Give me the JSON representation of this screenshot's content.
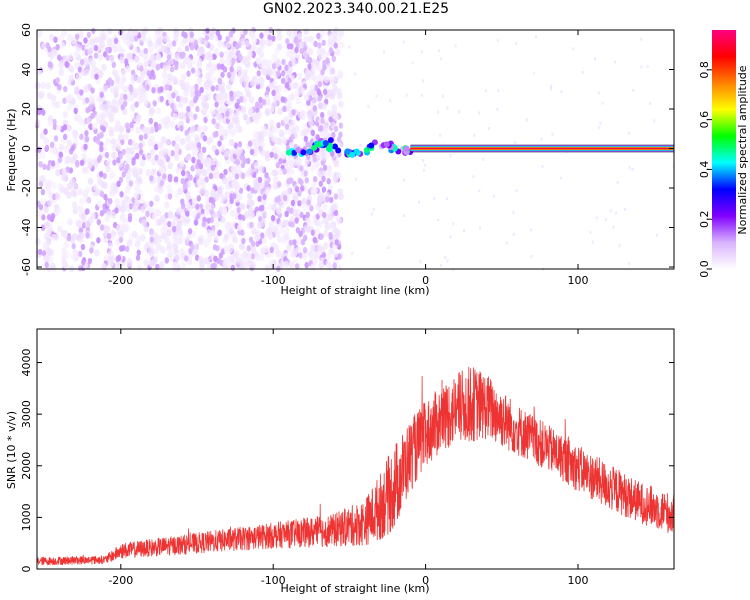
{
  "title": "GN02.2023.340.00.21.E25",
  "chart_data": [
    {
      "type": "heatmap",
      "xlabel": "Height of straight line (km)",
      "ylabel": "Frequency (Hz)",
      "xlim": [
        -255,
        163
      ],
      "ylim": [
        -61,
        60
      ],
      "x_ticks": [
        -200,
        -100,
        0,
        100
      ],
      "y_ticks": [
        -60,
        -40,
        -20,
        0,
        20,
        40,
        60
      ],
      "colorbar": {
        "label": "Normalized spectral amplitude",
        "range": [
          0.0,
          0.96
        ],
        "ticks": [
          0.0,
          0.2,
          0.4,
          0.6,
          0.8
        ],
        "colormap": [
          "#ffffff",
          "#d9b3ff",
          "#8000ff",
          "#0000ff",
          "#00ffff",
          "#00ff00",
          "#ffff00",
          "#ff8000",
          "#ff0000",
          "#ff0080"
        ]
      },
      "features": {
        "noise_region_x": [
          -255,
          -55
        ],
        "noise_freq_range": [
          -61,
          60
        ],
        "noise_amplitude": [
          0.02,
          0.1
        ],
        "transition_blob_x": [
          -90,
          -10
        ],
        "transition_amplitude": [
          0.1,
          0.5
        ],
        "tone_x": [
          -10,
          163
        ],
        "tone_freq": 0,
        "tone_amplitude": 0.9
      },
      "grid": false
    },
    {
      "type": "line",
      "xlabel": "Height of straight line (km)",
      "ylabel": "SNR (10 * v/v)",
      "xlim": [
        -255,
        163
      ],
      "ylim": [
        0,
        4650
      ],
      "x_ticks": [
        -200,
        -100,
        0,
        100
      ],
      "y_ticks": [
        0,
        1000,
        2000,
        3000,
        4000
      ],
      "color": "#ee3333",
      "envelope": {
        "x": [
          -255,
          -210,
          -200,
          -150,
          -100,
          -60,
          -40,
          -30,
          -20,
          -10,
          0,
          10,
          20,
          30,
          40,
          60,
          80,
          100,
          120,
          140,
          163
        ],
        "mean": [
          150,
          180,
          350,
          500,
          650,
          750,
          900,
          1200,
          1600,
          2200,
          2600,
          2900,
          3100,
          3200,
          3150,
          2700,
          2350,
          1950,
          1600,
          1300,
          1050
        ],
        "spread": [
          80,
          80,
          150,
          200,
          250,
          320,
          450,
          650,
          850,
          700,
          650,
          650,
          700,
          750,
          650,
          500,
          450,
          450,
          450,
          400,
          400
        ]
      },
      "grid": false
    }
  ]
}
